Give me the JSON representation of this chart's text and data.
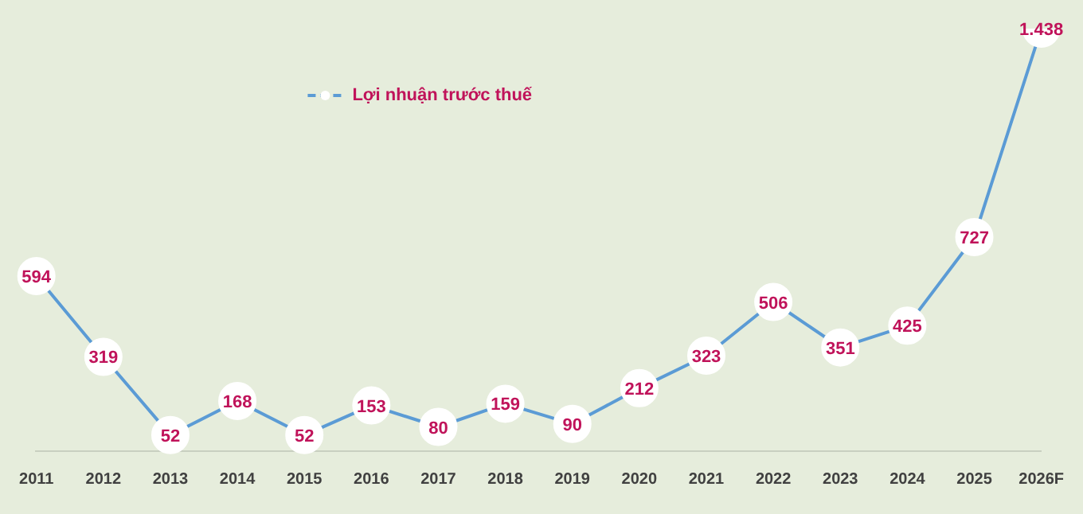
{
  "chart_data": {
    "type": "line",
    "categories": [
      "2011",
      "2012",
      "2013",
      "2014",
      "2015",
      "2016",
      "2017",
      "2018",
      "2019",
      "2020",
      "2021",
      "2022",
      "2023",
      "2024",
      "2025",
      "2026F"
    ],
    "series": [
      {
        "name": "Lợi nhuận trước thuế",
        "color": "#5b9bd5",
        "values": [
          594,
          319,
          52,
          168,
          52,
          153,
          80,
          159,
          90,
          212,
          323,
          506,
          351,
          425,
          727,
          1438
        ],
        "value_labels": [
          "594",
          "319",
          "52",
          "168",
          "52",
          "153",
          "80",
          "159",
          "90",
          "212",
          "323",
          "506",
          "351",
          "425",
          "727",
          "1.438"
        ]
      }
    ],
    "legend": "top left",
    "marker": "circle",
    "grid": false,
    "tick_labels": "x"
  }
}
